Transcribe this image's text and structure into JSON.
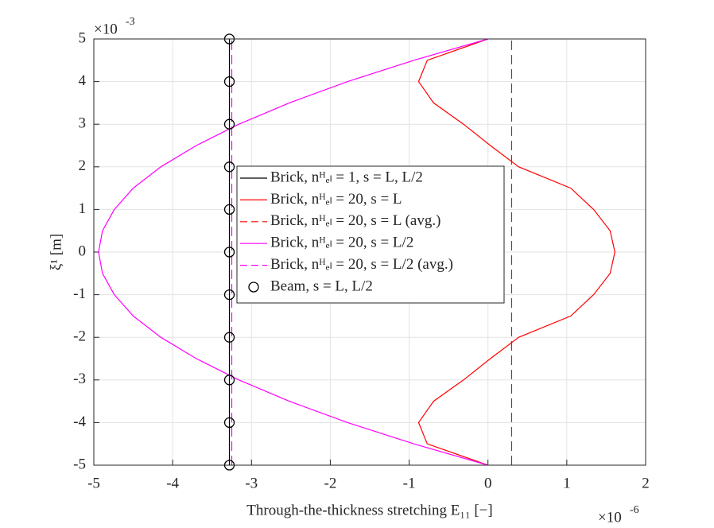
{
  "chart_data": {
    "type": "line",
    "xlabel": "Through-the-thickness stretching E₁₁ [−]",
    "ylabel": "ξ¹ [m]",
    "x_multiplier": {
      "base": "×10",
      "exponent": "-6"
    },
    "y_multiplier": {
      "base": "×10",
      "exponent": "-3"
    },
    "xlim": [
      -5,
      2
    ],
    "ylim": [
      -5,
      5
    ],
    "xticks": [
      -5,
      -4,
      -3,
      -2,
      -1,
      0,
      1,
      2
    ],
    "yticks": [
      -5,
      -4,
      -3,
      -2,
      -1,
      0,
      1,
      2,
      3,
      4,
      5
    ],
    "grid": true,
    "series": [
      {
        "name": "Brick, nᴴₑₗ = 1, s = L, L/2",
        "color": "#000000",
        "dash": false,
        "marker": "none",
        "x": [
          -3.28,
          -3.28
        ],
        "y": [
          -5,
          5
        ]
      },
      {
        "name": "Brick, nᴴₑₗ = 20, s = L",
        "color": "#ff0000",
        "dash": false,
        "marker": "none",
        "x": [
          0,
          -0.77,
          -0.88,
          -0.69,
          -0.31,
          0.03,
          0.39,
          1.05,
          1.34,
          1.55,
          1.61,
          1.55,
          1.34,
          1.05,
          0.39,
          0.03,
          -0.31,
          -0.69,
          -0.88,
          -0.77,
          0
        ],
        "y": [
          5,
          4.5,
          4,
          3.5,
          3,
          2.5,
          2,
          1.5,
          1,
          0.5,
          0,
          -0.5,
          -1,
          -1.5,
          -2,
          -2.5,
          -3,
          -3.5,
          -4,
          -4.5,
          -5
        ]
      },
      {
        "name": "Brick, nᴴₑₗ = 20, s = L (avg.)",
        "color": "#ff0000",
        "dash": true,
        "marker": "none",
        "x": [
          0.3,
          0.3
        ],
        "y": [
          -5,
          5
        ]
      },
      {
        "name": "Brick, nᴴₑₗ = 20, s = L/2",
        "color": "#ff00ff",
        "dash": false,
        "marker": "none",
        "x": [
          0,
          -0.94,
          -1.78,
          -2.52,
          -3.16,
          -3.7,
          -4.15,
          -4.5,
          -4.74,
          -4.89,
          -4.94,
          -4.89,
          -4.74,
          -4.5,
          -4.15,
          -3.7,
          -3.16,
          -2.52,
          -1.78,
          -0.94,
          0
        ],
        "y": [
          5,
          4.5,
          4,
          3.5,
          3,
          2.5,
          2,
          1.5,
          1,
          0.5,
          0,
          -0.5,
          -1,
          -1.5,
          -2,
          -2.5,
          -3,
          -3.5,
          -4,
          -4.5,
          -5
        ]
      },
      {
        "name": "Brick, nᴴₑₗ = 20, s = L/2 (avg.)",
        "color": "#ff00ff",
        "dash": true,
        "marker": "none",
        "x": [
          -3.25,
          -3.25
        ],
        "y": [
          -5,
          5
        ]
      },
      {
        "name": "Beam, s = L, L/2",
        "color": "#000000",
        "dash": false,
        "marker": "o",
        "x": [
          -3.28,
          -3.28,
          -3.28,
          -3.28,
          -3.28,
          -3.28,
          -3.28,
          -3.28,
          -3.28,
          -3.28,
          -3.28
        ],
        "y": [
          5,
          4,
          3,
          2,
          1,
          0,
          -1,
          -2,
          -3,
          -4,
          -5
        ]
      }
    ]
  }
}
